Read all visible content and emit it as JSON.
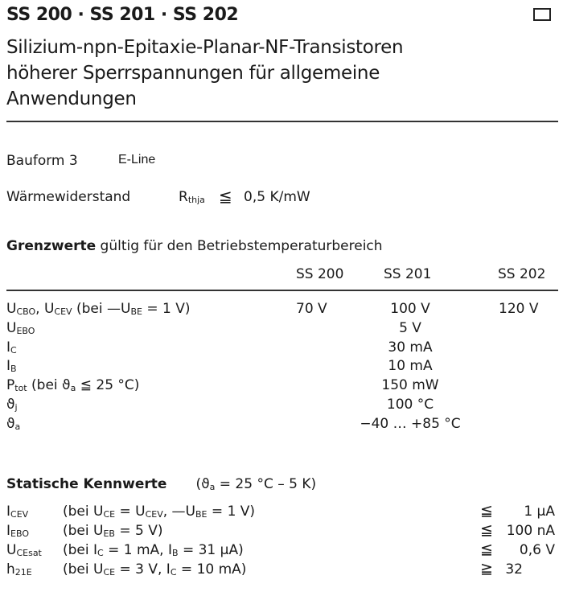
{
  "header": {
    "title": "SS 200 · SS 201 · SS 202",
    "subtitle_lines": [
      "Silizium-npn-Epitaxie-Planar-NF-Transistoren",
      "höherer Sperrspannungen für allgemeine",
      "Anwendungen"
    ],
    "corner_icon": "square-outline-icon"
  },
  "bauform": {
    "label": "Bauform 3",
    "value": "E-Line"
  },
  "waerme": {
    "label": "Wärmewiderstand",
    "symbol": "R",
    "symbol_sub": "thja",
    "relation": "≦",
    "value": "0,5 K/mW"
  },
  "grenzwerte": {
    "heading": "Grenzwerte",
    "heading_rest": " gültig für den Betriebstemperaturbereich",
    "columns": [
      "SS 200",
      "SS 201",
      "SS 202"
    ],
    "rows": [
      {
        "label": [
          [
            "U",
            ""
          ],
          [
            "",
            "CBO"
          ],
          [
            ", U",
            ""
          ],
          [
            "",
            "CEV"
          ],
          [
            " (bei —U",
            ""
          ],
          [
            "",
            "BE"
          ],
          [
            " = 1 V)",
            ""
          ]
        ],
        "values": [
          "70 V",
          "100 V",
          "120 V"
        ]
      },
      {
        "label": [
          [
            "U",
            ""
          ],
          [
            "",
            "EBO"
          ]
        ],
        "values": [
          "",
          "5 V",
          ""
        ]
      },
      {
        "label": [
          [
            "I",
            ""
          ],
          [
            "",
            "C"
          ]
        ],
        "values": [
          "",
          "30 mA",
          ""
        ]
      },
      {
        "label": [
          [
            "I",
            ""
          ],
          [
            "",
            "B"
          ]
        ],
        "values": [
          "",
          "10 mA",
          ""
        ]
      },
      {
        "label": [
          [
            "P",
            ""
          ],
          [
            "",
            "tot"
          ],
          [
            " (bei ϑ",
            ""
          ],
          [
            "",
            "a"
          ],
          [
            " ≦ 25 °C)",
            ""
          ]
        ],
        "values": [
          "",
          "150 mW",
          ""
        ]
      },
      {
        "label": [
          [
            "ϑ",
            ""
          ],
          [
            "",
            "j"
          ]
        ],
        "values": [
          "",
          "100 °C",
          ""
        ]
      },
      {
        "label": [
          [
            "ϑ",
            ""
          ],
          [
            "",
            "a"
          ]
        ],
        "values": [
          "",
          "−40 … +85 °C",
          ""
        ]
      }
    ]
  },
  "statisch": {
    "heading": "Statische Kennwerte",
    "condition_pre": "(ϑ",
    "condition_sub": "a",
    "condition_post": " = 25 °C – 5 K)",
    "rows": [
      {
        "symbol": [
          [
            "I",
            ""
          ],
          [
            "",
            "CEV"
          ]
        ],
        "cond": [
          [
            "(bei U",
            ""
          ],
          [
            "",
            "CE"
          ],
          [
            " = U",
            ""
          ],
          [
            "",
            "CEV"
          ],
          [
            ", —U",
            ""
          ],
          [
            "",
            "BE"
          ],
          [
            " = 1 V)",
            ""
          ]
        ],
        "rel": "≦",
        "value": "1 µA"
      },
      {
        "symbol": [
          [
            "I",
            ""
          ],
          [
            "",
            "EBO"
          ]
        ],
        "cond": [
          [
            "(bei U",
            ""
          ],
          [
            "",
            "EB"
          ],
          [
            " = 5 V)",
            ""
          ]
        ],
        "rel": "≦",
        "value": "100 nA"
      },
      {
        "symbol": [
          [
            "U",
            ""
          ],
          [
            "",
            "CEsat"
          ]
        ],
        "cond": [
          [
            "(bei I",
            ""
          ],
          [
            "",
            "C"
          ],
          [
            "  = 1 mA, I",
            ""
          ],
          [
            "",
            "B"
          ],
          [
            " = 31 µA)",
            ""
          ]
        ],
        "rel": "≦",
        "value": "0,6 V"
      },
      {
        "symbol": [
          [
            "h",
            ""
          ],
          [
            "",
            "21E"
          ]
        ],
        "cond": [
          [
            "(bei U",
            ""
          ],
          [
            "",
            "CE"
          ],
          [
            " = 3 V,  I",
            ""
          ],
          [
            "",
            "C"
          ],
          [
            " = 10 mA)",
            ""
          ]
        ],
        "rel": "≧",
        "value": "32"
      }
    ]
  }
}
